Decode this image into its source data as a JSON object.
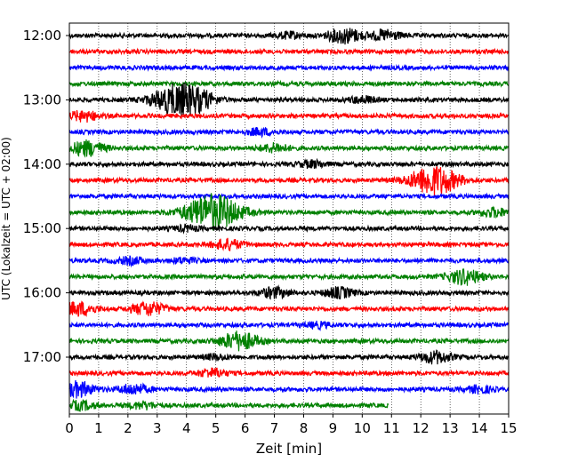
{
  "chart_data": {
    "type": "line",
    "title": "",
    "xlabel": "Zeit  [min]",
    "ylabel": "UTC (Lokalzeit = UTC + 02:00)",
    "xlim": [
      0,
      15
    ],
    "x_ticks": [
      0,
      1,
      2,
      3,
      4,
      5,
      6,
      7,
      8,
      9,
      10,
      11,
      12,
      13,
      14,
      15
    ],
    "y_ticks": [
      "12:00",
      "13:00",
      "14:00",
      "15:00",
      "16:00",
      "17:00"
    ],
    "grid": "vertical dotted",
    "line_colors": [
      "#000000",
      "#ff0000",
      "#0000ff",
      "#008000"
    ],
    "series": [
      {
        "start": "12:00",
        "end_min": 15,
        "events": [
          {
            "t": 9.4,
            "amp": 0.9
          },
          {
            "t": 10.8,
            "amp": 0.6
          },
          {
            "t": 7.5,
            "amp": 0.35
          }
        ]
      },
      {
        "start": "12:15",
        "end_min": 15,
        "events": []
      },
      {
        "start": "12:30",
        "end_min": 15,
        "events": []
      },
      {
        "start": "12:45",
        "end_min": 15,
        "events": []
      },
      {
        "start": "13:00",
        "end_min": 15,
        "events": [
          {
            "t": 3.7,
            "amp": 1.9
          },
          {
            "t": 4.5,
            "amp": 0.6
          },
          {
            "t": 10.0,
            "amp": 0.4
          }
        ]
      },
      {
        "start": "13:15",
        "end_min": 15,
        "events": [
          {
            "t": 0.5,
            "amp": 0.6
          }
        ]
      },
      {
        "start": "13:30",
        "end_min": 15,
        "events": [
          {
            "t": 6.5,
            "amp": 0.4
          }
        ]
      },
      {
        "start": "13:45",
        "end_min": 15,
        "events": [
          {
            "t": 0.6,
            "amp": 0.9
          },
          {
            "t": 7.0,
            "amp": 0.5
          }
        ]
      },
      {
        "start": "14:00",
        "end_min": 15,
        "events": [
          {
            "t": 8.3,
            "amp": 0.4
          }
        ]
      },
      {
        "start": "14:15",
        "end_min": 15,
        "events": [
          {
            "t": 12.45,
            "amp": 1.8
          }
        ]
      },
      {
        "start": "14:30",
        "end_min": 15,
        "events": []
      },
      {
        "start": "14:45",
        "end_min": 15,
        "events": [
          {
            "t": 4.9,
            "amp": 2.2
          },
          {
            "t": 14.5,
            "amp": 0.5
          }
        ]
      },
      {
        "start": "15:00",
        "end_min": 15,
        "events": [
          {
            "t": 4.0,
            "amp": 0.3
          }
        ]
      },
      {
        "start": "15:15",
        "end_min": 15,
        "events": [
          {
            "t": 5.4,
            "amp": 0.6
          }
        ]
      },
      {
        "start": "15:30",
        "end_min": 15,
        "events": [
          {
            "t": 2.1,
            "amp": 0.4
          },
          {
            "t": 3.9,
            "amp": 0.3
          }
        ]
      },
      {
        "start": "15:45",
        "end_min": 15,
        "events": [
          {
            "t": 13.5,
            "amp": 0.9
          }
        ]
      },
      {
        "start": "16:00",
        "end_min": 15,
        "events": [
          {
            "t": 7.0,
            "amp": 0.6
          },
          {
            "t": 9.2,
            "amp": 0.6
          }
        ]
      },
      {
        "start": "16:15",
        "end_min": 15,
        "events": [
          {
            "t": 0.3,
            "amp": 0.8
          },
          {
            "t": 2.7,
            "amp": 0.8
          }
        ]
      },
      {
        "start": "16:30",
        "end_min": 15,
        "events": [
          {
            "t": 8.5,
            "amp": 0.3
          }
        ]
      },
      {
        "start": "16:45",
        "end_min": 15,
        "events": [
          {
            "t": 5.8,
            "amp": 1.1
          }
        ]
      },
      {
        "start": "17:00",
        "end_min": 15,
        "events": [
          {
            "t": 12.5,
            "amp": 0.7
          },
          {
            "t": 5.0,
            "amp": 0.3
          }
        ]
      },
      {
        "start": "17:15",
        "end_min": 15,
        "events": [
          {
            "t": 4.9,
            "amp": 0.5
          }
        ]
      },
      {
        "start": "17:30",
        "end_min": 15,
        "events": [
          {
            "t": 0.25,
            "amp": 0.9
          },
          {
            "t": 2.2,
            "amp": 0.6
          },
          {
            "t": 14.0,
            "amp": 0.4
          }
        ]
      },
      {
        "start": "17:45",
        "end_min": 10.9,
        "events": [
          {
            "t": 0.4,
            "amp": 0.5
          },
          {
            "t": 2.5,
            "amp": 0.4
          }
        ]
      }
    ]
  }
}
